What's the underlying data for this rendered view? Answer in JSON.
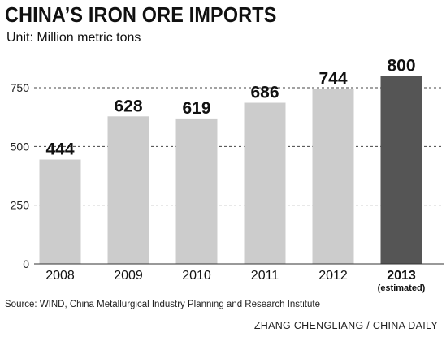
{
  "chart_data": {
    "type": "bar",
    "title": "CHINA’S IRON ORE IMPORTS",
    "subtitle": "Unit: Million metric tons",
    "categories": [
      "2008",
      "2009",
      "2010",
      "2011",
      "2012",
      "2013"
    ],
    "category_notes": [
      "",
      "",
      "",
      "",
      "",
      "(estimated)"
    ],
    "values": [
      444,
      628,
      619,
      686,
      744,
      800
    ],
    "highlight_index": 5,
    "ylim": [
      0,
      800
    ],
    "yticks": [
      0,
      250,
      500,
      750
    ],
    "grid": "dashed horizontal",
    "colors": {
      "bar": "#cccccc",
      "highlight": "#555555",
      "grid": "#444444"
    }
  },
  "footer": {
    "source": "Source: WIND, China Metallurgical Industry Planning and Research Institute",
    "credit": "ZHANG CHENGLIANG / CHINA DAILY"
  }
}
